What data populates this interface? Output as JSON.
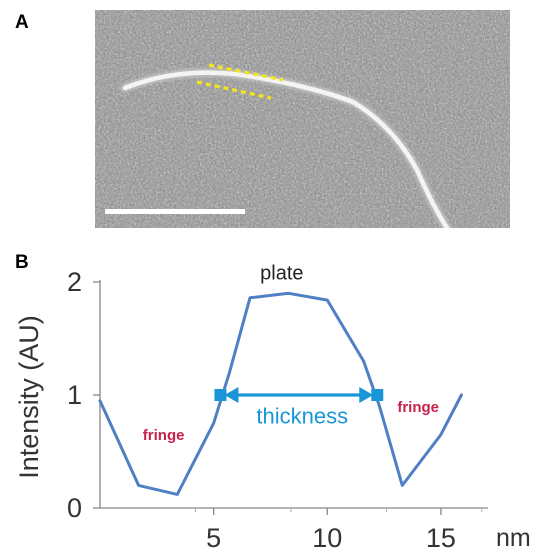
{
  "figure": {
    "panel_a_label": "A",
    "panel_b_label": "B"
  },
  "micrograph": {
    "overlay_color": "#f2e51c",
    "scale_bar_color": "#ffffff"
  },
  "chart_data": {
    "type": "line",
    "title": "",
    "xlabel": "nm",
    "ylabel": "Intensity (AU)",
    "xlim": [
      0,
      16.5
    ],
    "ylim": [
      0,
      2
    ],
    "xticks": [
      "5",
      "10",
      "15"
    ],
    "xtick_values": [
      5,
      10,
      15
    ],
    "yticks": [
      "0",
      "1",
      "2"
    ],
    "ytick_values": [
      0,
      1,
      2
    ],
    "line_color": "#4f7fc4",
    "x": [
      0,
      1.7,
      3.4,
      5,
      5.7,
      6.6,
      8.3,
      10,
      11.6,
      12.3,
      13.3,
      15,
      15.9
    ],
    "y": [
      0.95,
      0.2,
      0.12,
      0.75,
      1.2,
      1.86,
      1.9,
      1.84,
      1.3,
      0.9,
      0.2,
      0.65,
      1.0
    ],
    "annotations": {
      "plate": {
        "text": "plate",
        "x": 8.0,
        "y": 2.02,
        "color": "#222222"
      },
      "fringe_left": {
        "text": "fringe",
        "x": 2.8,
        "y": 0.6,
        "color": "#c8234a"
      },
      "fringe_right": {
        "text": "fringe",
        "x": 14.0,
        "y": 0.85,
        "color": "#c8234a"
      },
      "thickness": {
        "text": "thickness",
        "x": 8.9,
        "y": 0.75,
        "color": "#1a96d8"
      }
    },
    "thickness_arrow": {
      "x_start": 5.3,
      "x_end": 12.2,
      "y": 1.0,
      "color": "#1a96d8"
    }
  }
}
